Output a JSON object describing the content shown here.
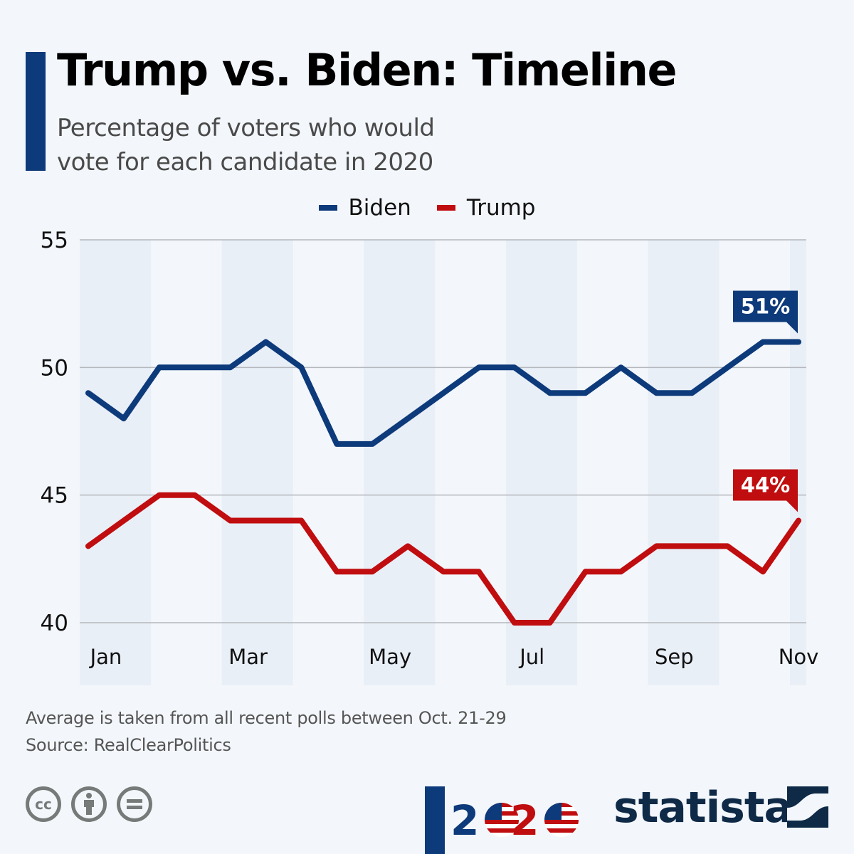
{
  "header": {
    "title": "Trump vs. Biden: Timeline",
    "subtitle_line1": "Percentage of voters who would",
    "subtitle_line2": "vote for each candidate in 2020"
  },
  "colors": {
    "biden": "#0d3a7a",
    "trump": "#c00d0f",
    "background": "#f3f7fb",
    "band": "#e9eff7",
    "gridline": "#b5b9bd",
    "accent": "#0d3a7a"
  },
  "chart_data": {
    "type": "line",
    "title": "Trump vs. Biden: Timeline",
    "subtitle": "Percentage of voters who would vote for each candidate in 2020",
    "xlabel": "",
    "ylabel": "",
    "ylim": [
      40,
      55
    ],
    "yticks": [
      55,
      50,
      45,
      40
    ],
    "xtick_labels": [
      "Jan",
      "Mar",
      "May",
      "Jul",
      "Sep",
      "Nov"
    ],
    "x_count": 21,
    "xtick_index": [
      0.5,
      4.5,
      8.5,
      12.5,
      16.5,
      20
    ],
    "grid": true,
    "legend": "top-center",
    "series": [
      {
        "name": "Biden",
        "color": "#0d3a7a",
        "values": [
          49,
          48,
          50,
          50,
          50,
          51,
          50,
          47,
          47,
          48,
          49,
          50,
          50,
          49,
          49,
          50,
          49,
          49,
          50,
          51,
          51
        ],
        "end_label": "51%"
      },
      {
        "name": "Trump",
        "color": "#c00d0f",
        "values": [
          43,
          44,
          45,
          45,
          44,
          44,
          44,
          42,
          42,
          43,
          42,
          42,
          40,
          40,
          42,
          42,
          43,
          43,
          43,
          42,
          44
        ],
        "end_label": "44%"
      }
    ]
  },
  "footer": {
    "note": "Average is taken from all recent polls between Oct. 21-29",
    "source": "Source: RealClearPolitics",
    "cc_icons": [
      "cc-icon",
      "attribution-icon",
      "no-derivatives-icon"
    ],
    "cc_label": "cc",
    "logo_year": "2020",
    "brand": "statista"
  }
}
